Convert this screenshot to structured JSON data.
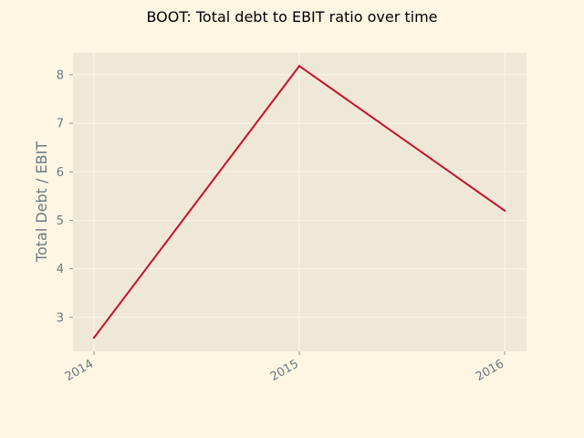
{
  "chart_data": {
    "type": "line",
    "title": "BOOT: Total debt to EBIT ratio over time",
    "xlabel": "",
    "ylabel": "Total Debt / EBIT",
    "x": [
      "2014",
      "2015",
      "2016"
    ],
    "series": [
      {
        "values": [
          2.58,
          8.18,
          5.2
        ]
      }
    ],
    "yticks": [
      3,
      4,
      5,
      6,
      7,
      8
    ],
    "ylim": [
      2.3,
      8.45
    ],
    "grid": true,
    "legend": "none",
    "colors": {
      "background": "#fdf6e3",
      "plot_area": "#efe8d6",
      "line": "#c8102e",
      "grid": "#fbf8ee",
      "text": "#6c7a80"
    }
  }
}
